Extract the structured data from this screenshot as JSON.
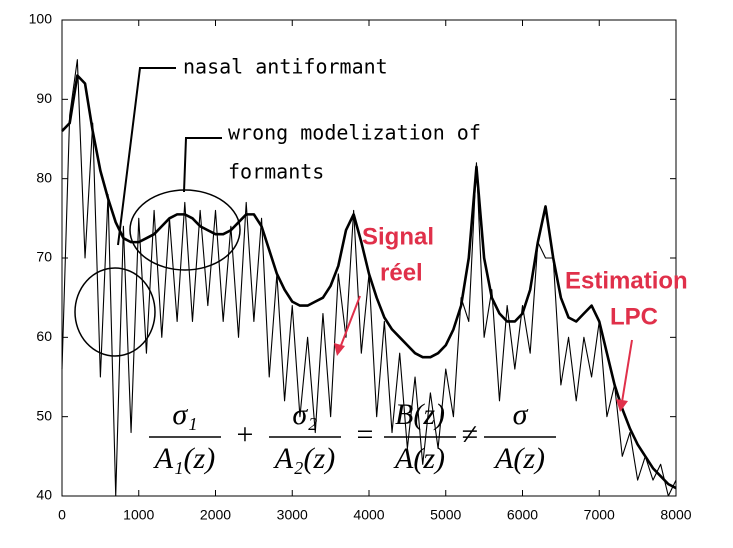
{
  "chart_data": {
    "type": "line",
    "x": [
      0,
      100,
      200,
      300,
      400,
      500,
      600,
      700,
      800,
      900,
      1000,
      1100,
      1200,
      1300,
      1400,
      1500,
      1600,
      1700,
      1800,
      1900,
      2000,
      2100,
      2200,
      2300,
      2400,
      2500,
      2600,
      2700,
      2800,
      2900,
      3000,
      3100,
      3200,
      3300,
      3400,
      3500,
      3600,
      3700,
      3800,
      3900,
      4000,
      4100,
      4200,
      4300,
      4400,
      4500,
      4600,
      4700,
      4800,
      4900,
      5000,
      5100,
      5200,
      5300,
      5400,
      5500,
      5600,
      5700,
      5800,
      5900,
      6000,
      6100,
      6200,
      6300,
      6400,
      6500,
      6600,
      6700,
      6800,
      6900,
      7000,
      7100,
      7200,
      7300,
      7400,
      7500,
      7600,
      7700,
      7800,
      7900,
      8000
    ],
    "series": [
      {
        "color": "#000000",
        "values": [
          56,
          88,
          95,
          70,
          87,
          55,
          78,
          40,
          74,
          48,
          75,
          58,
          76,
          60,
          75,
          62,
          77,
          62,
          76,
          64,
          76,
          62,
          74,
          60,
          77,
          62,
          75,
          55,
          68,
          52,
          64,
          50,
          60,
          48,
          63,
          50,
          68,
          60,
          76,
          58,
          68,
          50,
          62,
          48,
          58,
          46,
          55,
          44,
          53,
          46,
          56,
          50,
          65,
          62,
          82,
          60,
          66,
          52,
          64,
          56,
          64,
          58,
          72,
          70,
          70,
          54,
          60,
          52,
          60,
          55,
          62,
          50,
          54,
          45,
          48,
          42,
          45,
          42,
          44,
          40,
          42
        ]
      },
      {
        "color": "#000000",
        "values": [
          86,
          87,
          93,
          92,
          86,
          81,
          77.5,
          74.5,
          72.5,
          72,
          72,
          72.5,
          73,
          74,
          75,
          75.5,
          75.5,
          75,
          74,
          73.5,
          73,
          73,
          73.5,
          74.5,
          75.5,
          75.5,
          74,
          71,
          68,
          66,
          64.5,
          64,
          64,
          64.5,
          65,
          66.5,
          69,
          73.5,
          75.5,
          72,
          68,
          65,
          62.5,
          61,
          60,
          59,
          58,
          57.5,
          57.5,
          58,
          59,
          61,
          64,
          70,
          81.5,
          70,
          65,
          63,
          62,
          62,
          63,
          66,
          72,
          76.5,
          70,
          65,
          62.5,
          62,
          63,
          64,
          62,
          58,
          54,
          51,
          48.5,
          46.5,
          45,
          43.5,
          42.5,
          41.5,
          41
        ]
      }
    ],
    "xlim": [
      0,
      8000
    ],
    "xticks": [
      0,
      1000,
      2000,
      3000,
      4000,
      5000,
      6000,
      7000,
      8000
    ],
    "ylim": [
      40,
      100
    ],
    "yticks": [
      40,
      50,
      60,
      70,
      80,
      90,
      100
    ],
    "annotations": [
      "nasal antiformant",
      "wrong modelization of",
      "formants",
      "Signal",
      "réel",
      "Estimation",
      "LPC"
    ],
    "formula": {
      "numerators": [
        "σ₁",
        "σ₂",
        "B(z)",
        "σ"
      ],
      "denominators": [
        "A₁(z)",
        "A₂(z)",
        "A(z)",
        "A(z)"
      ],
      "operators": [
        "+",
        "=",
        "≠"
      ]
    }
  }
}
